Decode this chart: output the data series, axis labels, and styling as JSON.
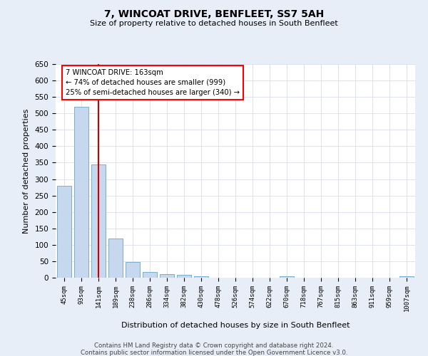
{
  "title": "7, WINCOAT DRIVE, BENFLEET, SS7 5AH",
  "subtitle": "Size of property relative to detached houses in South Benfleet",
  "xlabel": "Distribution of detached houses by size in South Benfleet",
  "ylabel": "Number of detached properties",
  "categories": [
    "45sqm",
    "93sqm",
    "141sqm",
    "189sqm",
    "238sqm",
    "286sqm",
    "334sqm",
    "382sqm",
    "430sqm",
    "478sqm",
    "526sqm",
    "574sqm",
    "622sqm",
    "670sqm",
    "718sqm",
    "767sqm",
    "815sqm",
    "863sqm",
    "911sqm",
    "959sqm",
    "1007sqm"
  ],
  "values": [
    280,
    520,
    345,
    120,
    48,
    17,
    10,
    8,
    5,
    0,
    0,
    0,
    0,
    5,
    0,
    0,
    0,
    0,
    0,
    0,
    5
  ],
  "bar_color": "#c5d8ed",
  "bar_edge_color": "#7aaece",
  "red_line_x": 2,
  "annotation_text": "7 WINCOAT DRIVE: 163sqm\n← 74% of detached houses are smaller (999)\n25% of semi-detached houses are larger (340) →",
  "annotation_box_color": "white",
  "annotation_box_edge_color": "red",
  "red_line_color": "#cc0000",
  "ylim": [
    0,
    650
  ],
  "yticks": [
    0,
    50,
    100,
    150,
    200,
    250,
    300,
    350,
    400,
    450,
    500,
    550,
    600,
    650
  ],
  "footer_line1": "Contains HM Land Registry data © Crown copyright and database right 2024.",
  "footer_line2": "Contains public sector information licensed under the Open Government Licence v3.0.",
  "bg_color": "#e8eef7",
  "plot_bg_color": "white",
  "grid_color": "#d0d8e8"
}
